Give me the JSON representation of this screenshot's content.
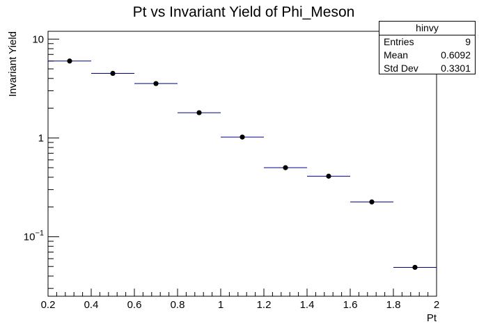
{
  "chart_data": {
    "type": "scatter",
    "title": "Pt vs Invariant Yield of Phi_Meson",
    "xlabel": "Pt",
    "ylabel": "Invariant Yield",
    "xlim": [
      0.2,
      2.0
    ],
    "ylim": [
      0.025,
      12
    ],
    "yscale": "log",
    "grid": false,
    "legend": "none",
    "x_ticks": [
      "0.2",
      "0.4",
      "0.6",
      "0.8",
      "1",
      "1.2",
      "1.4",
      "1.6",
      "1.8",
      "2"
    ],
    "y_ticks": [
      {
        "value": 0.1,
        "label_base": "10",
        "label_exp": "−1"
      },
      {
        "value": 1,
        "label_base": "1",
        "label_exp": ""
      },
      {
        "value": 10,
        "label_base": "10",
        "label_exp": ""
      }
    ],
    "bin_width": 0.2,
    "x": [
      0.3,
      0.5,
      0.7,
      0.9,
      1.1,
      1.3,
      1.5,
      1.7,
      1.9
    ],
    "y": [
      6.0,
      4.5,
      3.55,
      1.8,
      1.02,
      0.5,
      0.41,
      0.225,
      0.049
    ],
    "marker_color": "#000000",
    "error_bar_color": "#000080"
  },
  "stats": {
    "name": "hinvy",
    "rows": [
      {
        "label": "Entries",
        "value": "9"
      },
      {
        "label": "Mean",
        "value": "0.6092"
      },
      {
        "label": "Std Dev",
        "value": "0.3301"
      }
    ]
  }
}
